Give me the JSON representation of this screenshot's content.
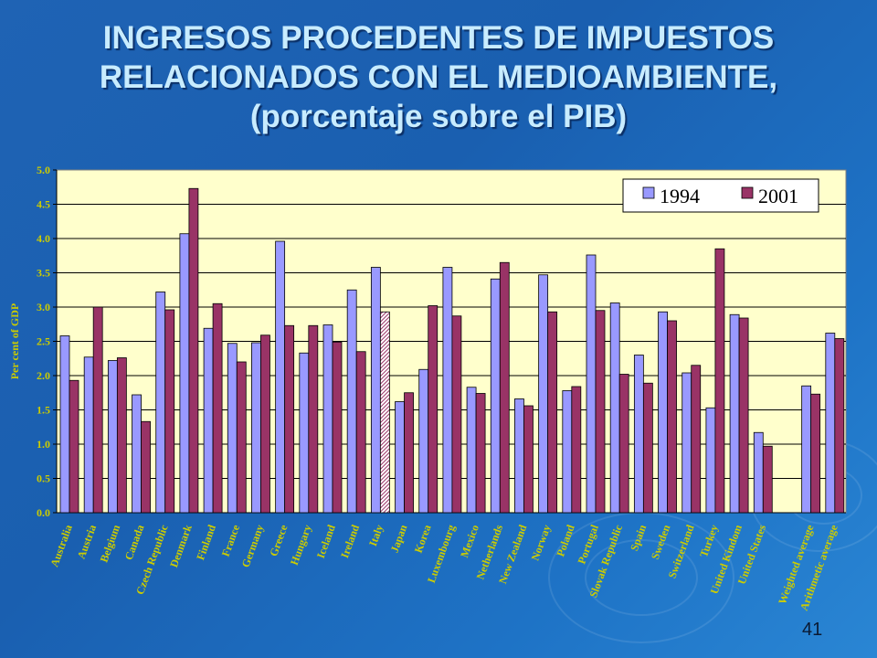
{
  "slide": {
    "title_lines": [
      "INGRESOS PROCEDENTES DE IMPUESTOS",
      "RELACIONADOS CON EL MEDIOAMBIENTE,",
      "(porcentaje  sobre el PIB)"
    ],
    "slide_number": "41"
  },
  "colors": {
    "plot_bg": "#ffffcc",
    "series_1994": "#9999ff",
    "series_2001": "#993366",
    "label_color": "#cccc00",
    "title_color": "#c8ecff"
  },
  "chart_data": {
    "type": "bar",
    "ylabel": "Per cent of GDP",
    "ylim": [
      0,
      5
    ],
    "yticks": [
      "0.0",
      "0.5",
      "1.0",
      "1.5",
      "2.0",
      "2.5",
      "3.0",
      "3.5",
      "4.0",
      "4.5",
      "5.0"
    ],
    "grid": true,
    "legend_position": "top-right",
    "categories": [
      "Australia",
      "Austria",
      "Belgium",
      "Canada",
      "Czech Republic",
      "Denmark",
      "Finland",
      "France",
      "Germany",
      "Greece",
      "Hungary",
      "Iceland",
      "Ireland",
      "Italy",
      "Japan",
      "Korea",
      "Luxembourg",
      "Mexico",
      "Netherlands",
      "New Zealand",
      "Norway",
      "Poland",
      "Portugal",
      "Slovak Republic",
      "Spain",
      "Sweden",
      "Switzerland",
      "Turkey",
      "United Kindom",
      "United States",
      "",
      "Weighted average",
      "Arithmetic average"
    ],
    "series": [
      {
        "name": "1994",
        "values": [
          2.58,
          2.27,
          2.22,
          1.72,
          3.22,
          4.07,
          2.69,
          2.47,
          2.48,
          3.96,
          2.33,
          2.74,
          3.25,
          3.58,
          1.62,
          2.09,
          3.58,
          1.83,
          3.41,
          1.66,
          3.47,
          1.78,
          3.76,
          3.06,
          2.3,
          2.93,
          2.04,
          1.53,
          2.89,
          1.17,
          null,
          1.85,
          2.62
        ]
      },
      {
        "name": "2001",
        "values": [
          1.93,
          3.0,
          2.26,
          1.33,
          2.96,
          4.73,
          3.05,
          2.2,
          2.59,
          2.73,
          2.73,
          2.49,
          2.35,
          2.93,
          1.75,
          3.02,
          2.87,
          1.74,
          3.65,
          1.56,
          2.93,
          1.84,
          2.95,
          2.02,
          1.89,
          2.8,
          2.15,
          3.85,
          2.84,
          0.97,
          null,
          1.73,
          2.54
        ]
      }
    ]
  }
}
